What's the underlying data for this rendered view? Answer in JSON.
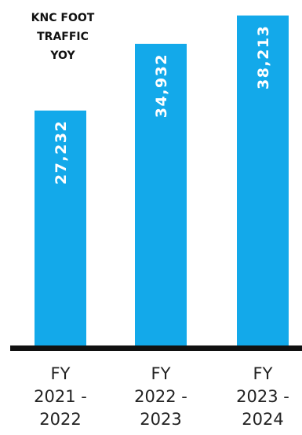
{
  "chart_data": {
    "type": "bar",
    "title": "KNC FOOT TRAFFIC YOY",
    "title_lines": [
      "KNC FOOT",
      "TRAFFIC",
      "YOY"
    ],
    "categories": [
      "FY 2021 - 2022",
      "FY 2022 - 2023",
      "FY 2023 - 2024"
    ],
    "category_lines": [
      [
        "FY",
        "2021 -",
        "2022"
      ],
      [
        "FY",
        "2022 -",
        "2023"
      ],
      [
        "FY",
        "2023 -",
        "2024"
      ]
    ],
    "values": [
      27232,
      34932,
      38213
    ],
    "value_labels": [
      "27,232",
      "34,932",
      "38,213"
    ],
    "ylim": [
      0,
      40000
    ],
    "xlabel": "",
    "ylabel": "",
    "grid": false,
    "legend": "none",
    "data_label_orientation": "vertical",
    "bar_color": "#13a9ea",
    "axis_color": "#111111",
    "text_color": "#222222"
  }
}
